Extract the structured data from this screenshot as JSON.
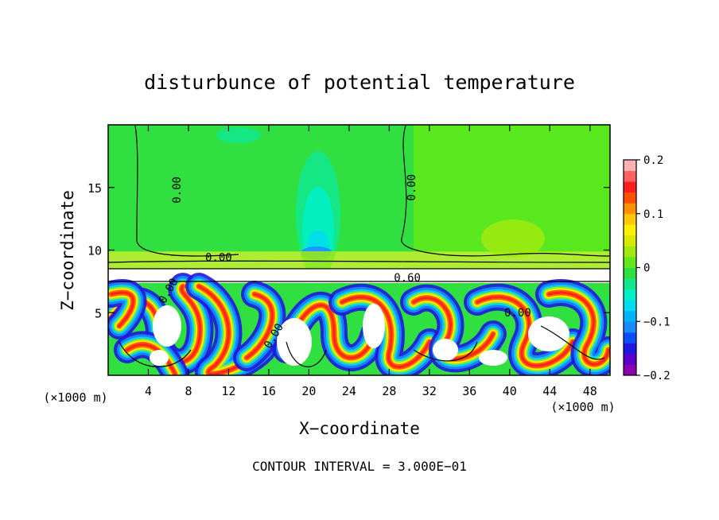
{
  "chart_data": {
    "type": "heatmap",
    "title": "disturbunce of potential temperature",
    "xlabel": "X−coordinate",
    "ylabel": "Z−coordinate",
    "x_unit_left": "(×1000 m)",
    "x_unit_right": "(×1000 m)",
    "xlim": [
      0,
      50
    ],
    "ylim": [
      0,
      20
    ],
    "xticks": [
      4,
      8,
      12,
      16,
      20,
      24,
      28,
      32,
      36,
      40,
      44,
      48
    ],
    "yticks": [
      5,
      10,
      15
    ],
    "colorbar": {
      "range": [
        -0.2,
        0.2
      ],
      "ticks": [
        {
          "v": 0.2,
          "label": "0.2"
        },
        {
          "v": 0.1,
          "label": "0.1"
        },
        {
          "v": 0,
          "label": "0"
        },
        {
          "v": -0.1,
          "label": "−0.1"
        },
        {
          "v": -0.2,
          "label": "−0.2"
        }
      ],
      "colors": [
        "#8b00b0",
        "#5a00c8",
        "#1e18e0",
        "#0a50ff",
        "#1a8cff",
        "#00b4ff",
        "#00dcf0",
        "#00f0c8",
        "#10e890",
        "#30e040",
        "#60e818",
        "#a0ea10",
        "#d8e800",
        "#fff000",
        "#ffc800",
        "#ff9000",
        "#ff5000",
        "#ff1e1e",
        "#ff6060",
        "#ffb0b0"
      ]
    },
    "contour_labels": [
      {
        "x": 7.2,
        "z": 14.8,
        "text": "0.00",
        "rot": -90
      },
      {
        "x": 30.6,
        "z": 15.0,
        "text": "0.00",
        "rot": -90
      },
      {
        "x": 11.0,
        "z": 9.1,
        "text": "0.00",
        "rot": 0
      },
      {
        "x": 6.3,
        "z": 6.6,
        "text": "0.00",
        "rot": -60
      },
      {
        "x": 16.8,
        "z": 3.0,
        "text": "0.00",
        "rot": -60
      },
      {
        "x": 40.8,
        "z": 4.7,
        "text": "0.00",
        "rot": 0
      },
      {
        "x": 29.8,
        "z": 7.5,
        "text": "0.60",
        "rot": 0
      }
    ],
    "footer": "CONTOUR INTERVAL = 3.000E−01"
  }
}
